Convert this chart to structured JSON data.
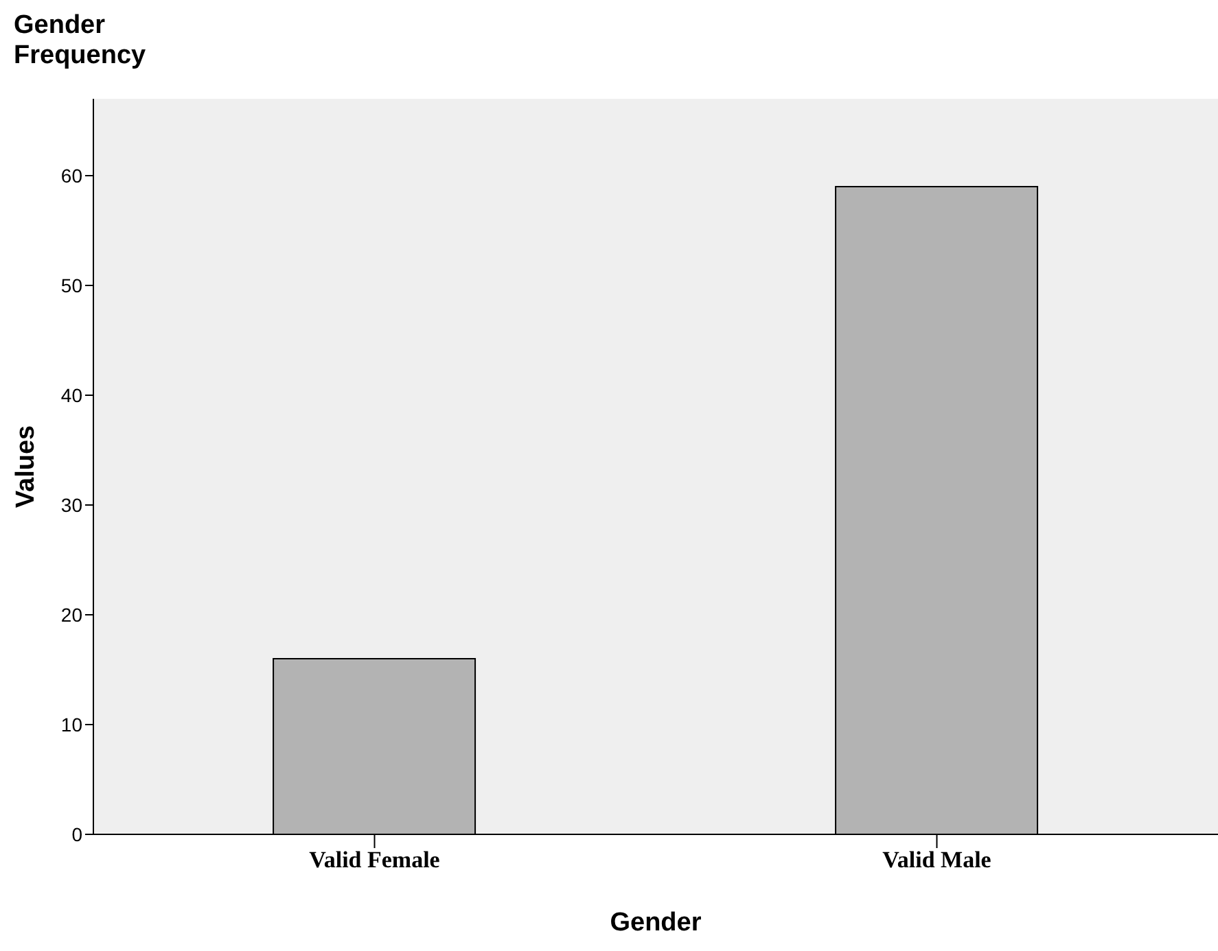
{
  "chart_data": {
    "type": "bar",
    "title": "Gender Frequency",
    "xlabel": "Gender",
    "ylabel": "Values",
    "categories": [
      "Valid Female",
      "Valid Male"
    ],
    "values": [
      16,
      59
    ],
    "color": "#b3b3b3",
    "ylim": [
      0,
      67
    ],
    "yticks": [
      0,
      10,
      20,
      30,
      40,
      50,
      60
    ],
    "grid": false
  }
}
